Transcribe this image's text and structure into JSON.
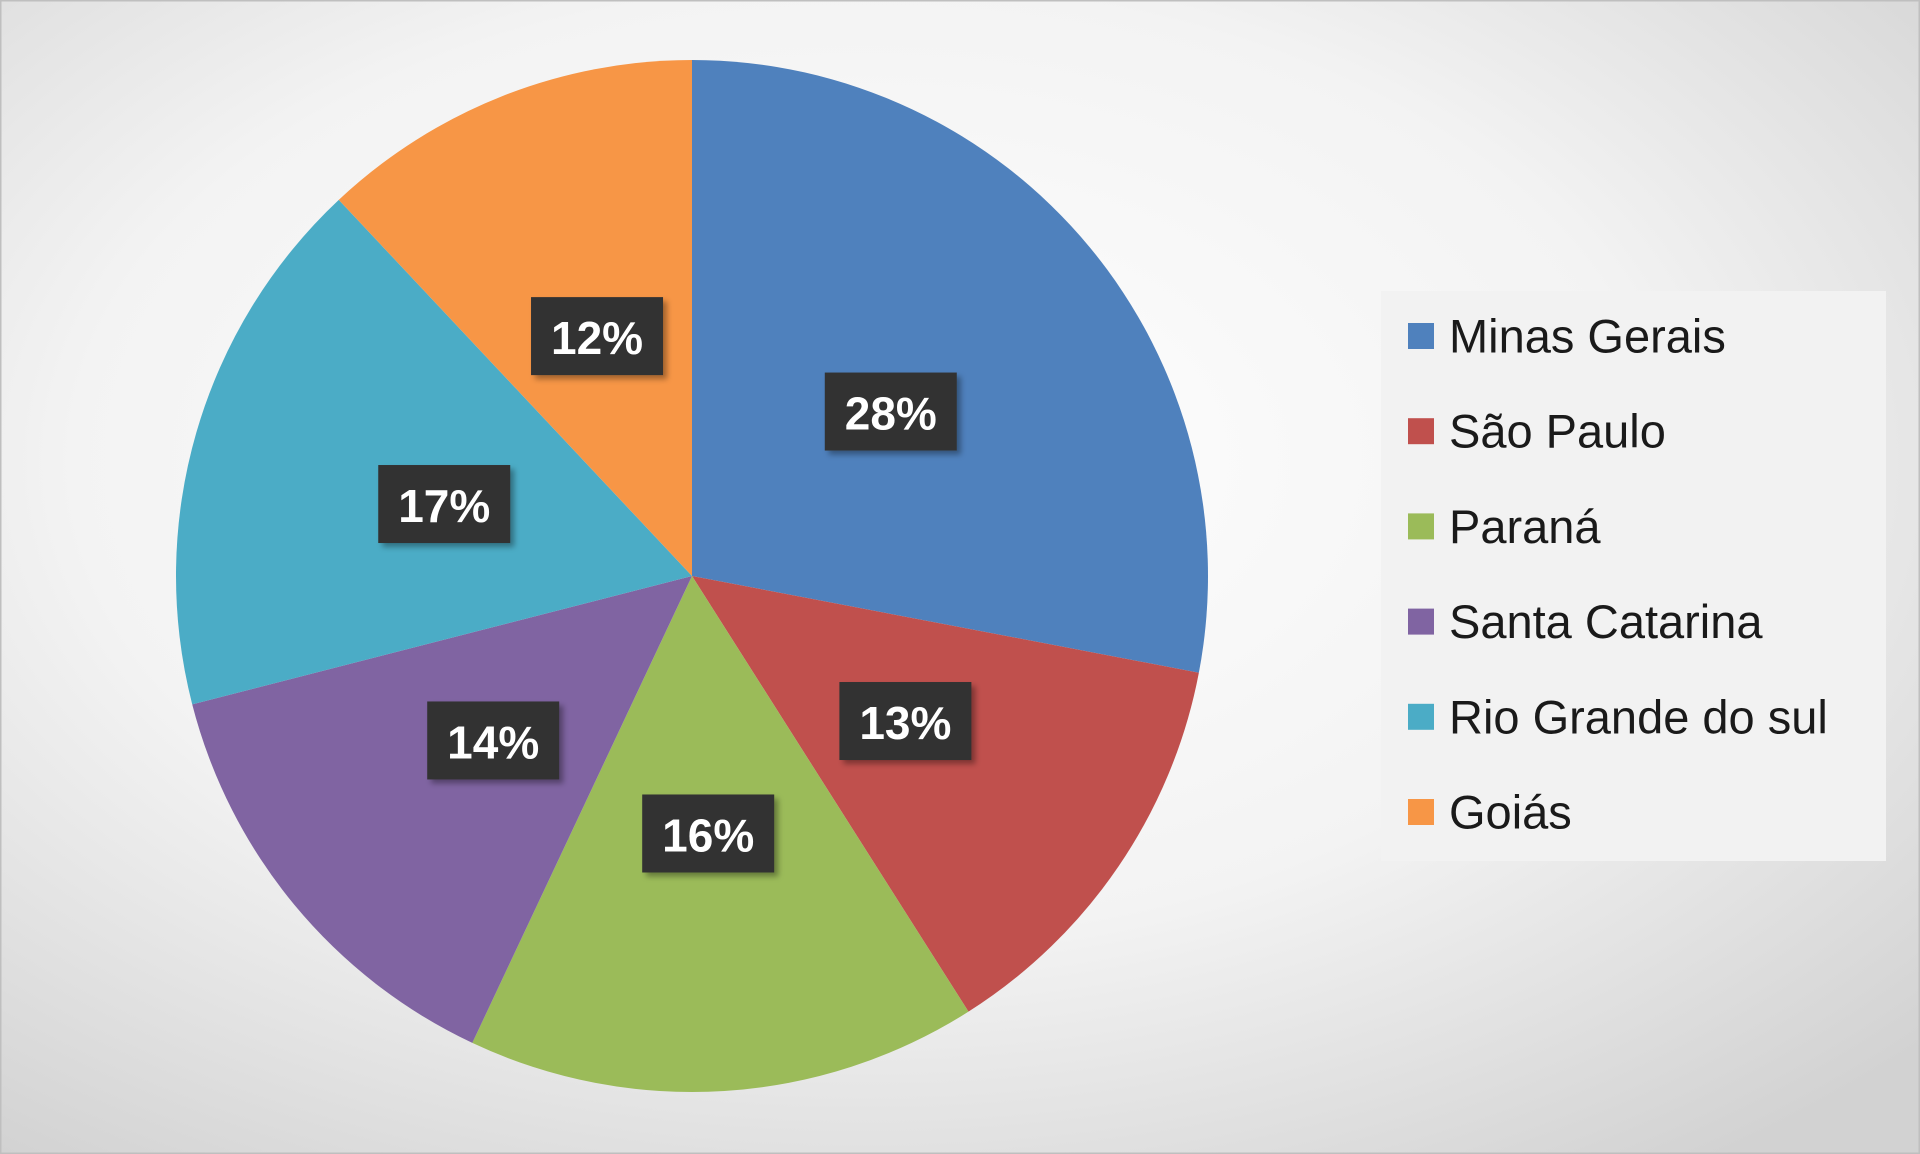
{
  "chart_data": {
    "type": "pie",
    "categories": [
      "Minas Gerais",
      "São Paulo",
      "Paraná",
      "Santa Catarina",
      "Rio Grande do sul",
      "Goiás"
    ],
    "values": [
      28,
      13,
      16,
      14,
      17,
      12
    ],
    "value_labels": [
      "28%",
      "13%",
      "16%",
      "14%",
      "17%",
      "12%"
    ],
    "colors": [
      "#4f81bd",
      "#c0504d",
      "#9bbb59",
      "#8064a2",
      "#4bacc6",
      "#f79646"
    ],
    "legend": "right"
  }
}
